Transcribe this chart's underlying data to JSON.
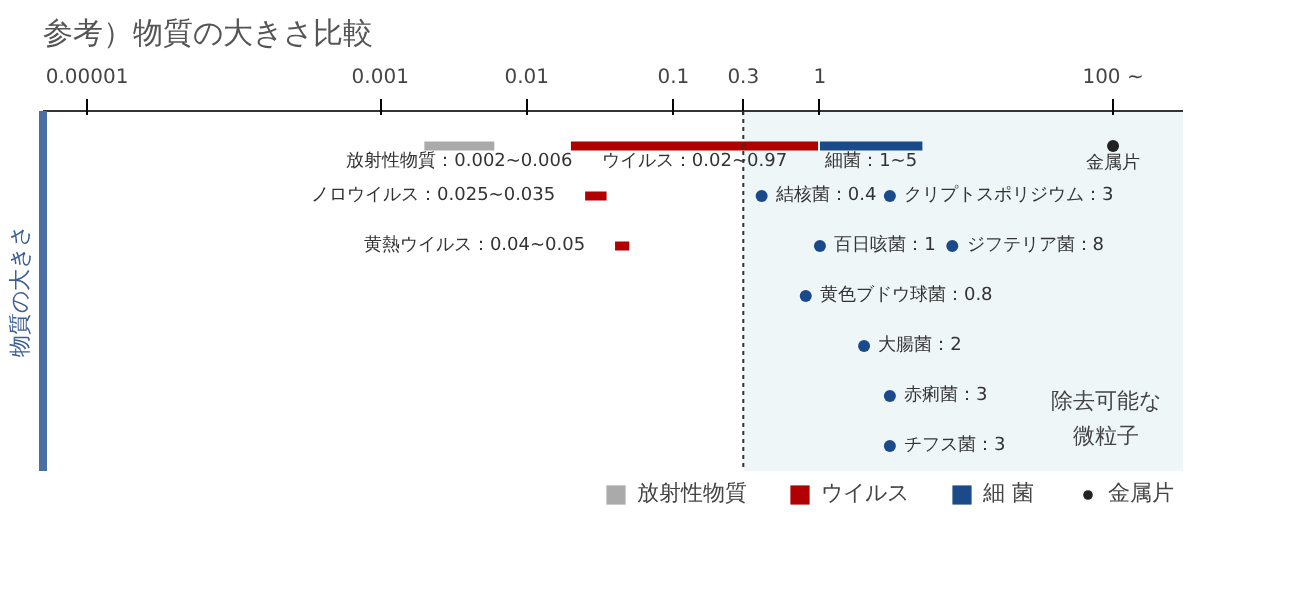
{
  "chart_data": {
    "type": "bar",
    "orientation": "horizontal",
    "title": "参考）物質の大きさ比較",
    "ylabel": "物質の大きさ",
    "categories": [
      null,
      null,
      null,
      null,
      null,
      null,
      null
    ],
    "series": [
      {
        "name": "放射性物質",
        "color": "#aaaaaa",
        "base": [
          0.002,
          null,
          null,
          null,
          null,
          null,
          null
        ],
        "values": [
          0.004,
          null,
          null,
          null,
          null,
          null,
          null
        ],
        "value_labels": [
          "放射性物質：0.002~0.006",
          null,
          null,
          null,
          null,
          null,
          null
        ]
      },
      {
        "name": "ウイルス",
        "color": "#b00000",
        "base": [
          0.02,
          0.025,
          0.04,
          null,
          null,
          null,
          null
        ],
        "values": [
          0.95,
          0.01,
          0.01,
          null,
          null,
          null,
          null
        ],
        "value_labels": [
          "ウイルス：0.02~0.97",
          "ノロウイルス：0.025~0.035",
          "黄熱ウイルス：0.04~0.05",
          null,
          null,
          null,
          null
        ]
      },
      {
        "name": "細 菌",
        "color": "#1a4a8a",
        "base": [
          1,
          null,
          null,
          null,
          null,
          null,
          null
        ],
        "values": [
          4,
          null,
          null,
          null,
          null,
          null,
          null
        ],
        "value_labels": [
          "細菌：1~5",
          null,
          null,
          null,
          null,
          null,
          null
        ]
      },
      {
        "type": "scatter",
        "color": "#1a4a8a",
        "values": [
          null,
          0.4,
          1,
          0.8,
          2,
          3,
          3
        ],
        "value_labels": [
          null,
          "結核菌：0.4",
          "百日咳菌：1",
          "黄色ブドウ球菌：0.8",
          "大腸菌：2",
          "赤痢菌：3",
          "チフス菌：3"
        ]
      },
      {
        "type": "scatter",
        "color": "#1a4a8a",
        "values": [
          null,
          3,
          8,
          null,
          null,
          null,
          null
        ],
        "value_labels": [
          null,
          "クリプトスポリジウム：3",
          "ジフテリア菌：8",
          null,
          null,
          null,
          null
        ]
      },
      {
        "name": "金属片",
        "type": "scatter",
        "color": "#222222",
        "values": [
          100,
          null,
          null,
          null,
          null,
          null,
          null
        ],
        "value_labels": [
          "金属片",
          null,
          null,
          null,
          null,
          null,
          null
        ]
      }
    ],
    "log": "x",
    "xlim": [
      5e-06,
      300
    ],
    "xticks": [
      {
        "value": 1e-05,
        "label": "0.00001"
      },
      0.001,
      0.01,
      0.1,
      0.3,
      1,
      {
        "value": 100,
        "label": "100 ~"
      }
    ],
    "bands": [
      {
        "axis": "x",
        "from": 0.3,
        "to": 300,
        "label": "除去可能な微粒子",
        "color": "#eef6f8"
      }
    ],
    "ref_lines": [
      {
        "axis": "x",
        "value": 0.3,
        "color": "#333333",
        "line_style": "dotted"
      }
    ],
    "marker": "circle",
    "grid": false,
    "legend": "bottom",
    "tick_labels": "x"
  }
}
